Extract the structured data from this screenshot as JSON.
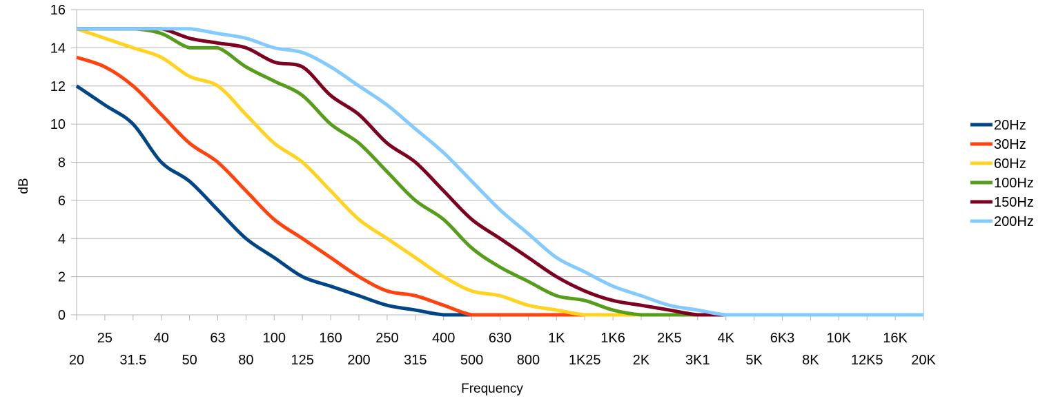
{
  "chart_data": {
    "type": "line",
    "title": "",
    "xlabel": "Frequency",
    "ylabel": "dB",
    "ylim": [
      0,
      16
    ],
    "yticks": [
      0,
      2,
      4,
      6,
      8,
      10,
      12,
      14,
      16
    ],
    "grid": "horizontal",
    "legend_position": "right",
    "categories": [
      "20",
      "25",
      "31.5",
      "40",
      "50",
      "63",
      "80",
      "100",
      "125",
      "160",
      "200",
      "250",
      "315",
      "400",
      "500",
      "630",
      "800",
      "1K",
      "1K25",
      "1K6",
      "2K",
      "2K5",
      "3K1",
      "4K",
      "5K",
      "6K3",
      "8K",
      "10K",
      "12K5",
      "16K",
      "20K"
    ],
    "series": [
      {
        "name": "20Hz",
        "color": "#004586",
        "values": [
          12,
          11,
          10,
          8,
          7,
          5.5,
          4,
          3,
          2,
          1.5,
          1,
          0.5,
          0.25,
          0,
          0,
          0,
          0,
          0,
          0,
          0,
          0,
          0,
          0,
          0,
          0,
          0,
          0,
          0,
          0,
          0,
          0
        ]
      },
      {
        "name": "30Hz",
        "color": "#ff420e",
        "values": [
          13.5,
          13,
          12,
          10.5,
          9,
          8,
          6.5,
          5,
          4,
          3,
          2,
          1.25,
          1,
          0.5,
          0,
          0,
          0,
          0,
          0,
          0,
          0,
          0,
          0,
          0,
          0,
          0,
          0,
          0,
          0,
          0,
          0
        ]
      },
      {
        "name": "60Hz",
        "color": "#ffd320",
        "values": [
          15,
          14.5,
          14,
          13.5,
          12.5,
          12,
          10.5,
          9,
          8,
          6.5,
          5,
          4,
          3,
          2,
          1.25,
          1,
          0.5,
          0.25,
          0,
          0,
          0,
          0,
          0,
          0,
          0,
          0,
          0,
          0,
          0,
          0,
          0
        ]
      },
      {
        "name": "100Hz",
        "color": "#579d1c",
        "values": [
          15,
          15,
          15,
          14.75,
          14,
          14,
          13,
          12.25,
          11.5,
          10,
          9,
          7.5,
          6,
          5,
          3.5,
          2.5,
          1.75,
          1,
          0.75,
          0.25,
          0,
          0,
          0,
          0,
          0,
          0,
          0,
          0,
          0,
          0,
          0
        ]
      },
      {
        "name": "150Hz",
        "color": "#7e0021",
        "values": [
          15,
          15,
          15,
          15,
          14.5,
          14.25,
          14,
          13.25,
          13,
          11.5,
          10.5,
          9,
          8,
          6.5,
          5,
          4,
          3,
          2,
          1.25,
          0.75,
          0.5,
          0.25,
          0,
          0,
          0,
          0,
          0,
          0,
          0,
          0,
          0
        ]
      },
      {
        "name": "200Hz",
        "color": "#83caff",
        "values": [
          15,
          15,
          15,
          15,
          15,
          14.75,
          14.5,
          14,
          13.75,
          13,
          12,
          11,
          9.75,
          8.5,
          7,
          5.5,
          4.25,
          3,
          2.25,
          1.5,
          1,
          0.5,
          0.25,
          0,
          0,
          0,
          0,
          0,
          0,
          0,
          0
        ]
      }
    ]
  }
}
